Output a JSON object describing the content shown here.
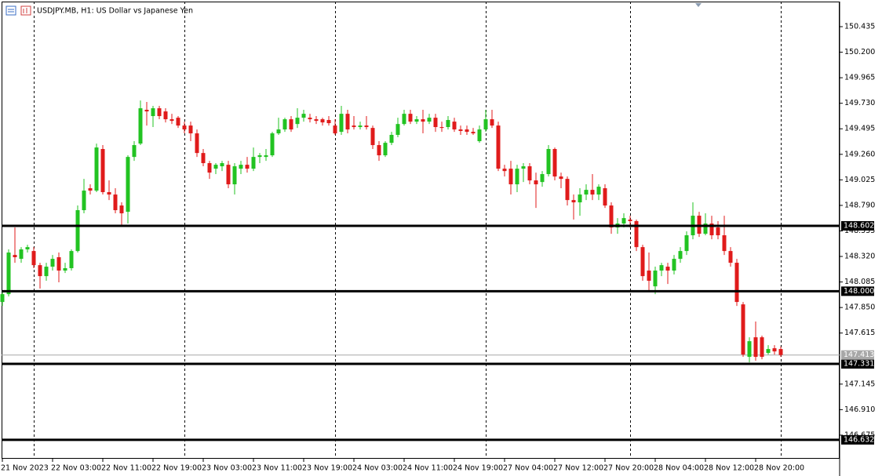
{
  "chart_data": {
    "type": "candlestick",
    "title": "USDJPY.MB, H1:  US Dollar vs Japanese Yen",
    "bull_color": "#22c322",
    "bear_color": "#e01b1b",
    "xlim": [
      -0.125,
      133.375
    ],
    "ylim": [
      146.458,
      150.666
    ],
    "yticks": [
      150.435,
      {
        "value": 150.2,
        "label": "150.200"
      },
      149.965,
      {
        "value": 149.73,
        "label": "149.730"
      },
      149.495,
      {
        "value": 149.26,
        "label": "149.260"
      },
      149.025,
      {
        "value": 148.79,
        "label": "148.790"
      },
      148.555,
      {
        "value": 148.32,
        "label": "148.320"
      },
      148.085,
      {
        "value": 147.85,
        "label": "147.850"
      },
      147.615,
      147.145,
      {
        "value": 146.91,
        "label": "146.910"
      },
      146.675
    ],
    "xticks": [
      {
        "value": 0,
        "label": "21 Nov 2023"
      },
      {
        "value": 8,
        "label": "22 Nov 03:00"
      },
      {
        "value": 16,
        "label": "22 Nov 11:00"
      },
      {
        "value": 24,
        "label": "22 Nov 19:00"
      },
      {
        "value": 32,
        "label": "23 Nov 03:00"
      },
      {
        "value": 40,
        "label": "23 Nov 11:00"
      },
      {
        "value": 48,
        "label": "23 Nov 19:00"
      },
      {
        "value": 56,
        "label": "24 Nov 03:00"
      },
      {
        "value": 64,
        "label": "24 Nov 11:00"
      },
      {
        "value": 72,
        "label": "24 Nov 19:00"
      },
      {
        "value": 80,
        "label": "27 Nov 04:00"
      },
      {
        "value": 88,
        "label": "27 Nov 12:00"
      },
      {
        "value": 96,
        "label": "27 Nov 20:00"
      },
      {
        "value": 104,
        "label": "28 Nov 04:00"
      },
      {
        "value": 112,
        "label": "28 Nov 12:00"
      },
      {
        "value": 120,
        "label": "28 Nov 20:00"
      }
    ],
    "period_separators": [
      5,
      29,
      53,
      77,
      100,
      124
    ],
    "levels": [
      148.602,
      {
        "value": 148,
        "label": "148.000"
      },
      147.331,
      146.632
    ],
    "current_price": 147.413,
    "open": [
      147.901,
      147.973,
      148.334,
      148.298,
      148.385,
      148.37,
      148.24,
      148.139,
      148.226,
      148.313,
      148.19,
      148.212,
      148.37,
      148.746,
      148.948,
      148.926,
      149.309,
      148.912,
      148.89,
      148.789,
      148.731,
      149.236,
      149.359,
      149.67,
      149.612,
      149.684,
      149.655,
      149.583,
      149.597,
      149.525,
      149.525,
      149.453,
      149.272,
      149.179,
      149.128,
      149.15,
      149.164,
      148.984,
      149.128,
      149.164,
      149.128,
      149.236,
      149.236,
      149.251,
      149.453,
      149.489,
      149.583,
      149.539,
      149.597,
      149.597,
      149.583,
      149.583,
      149.576,
      149.525,
      149.467,
      149.633,
      149.525,
      149.511,
      149.525,
      149.503,
      149.345,
      149.251,
      149.366,
      149.439,
      149.539,
      149.633,
      149.561,
      149.583,
      149.561,
      149.597,
      149.511,
      149.511,
      149.561,
      149.489,
      149.489,
      149.467,
      149.381,
      149.489,
      149.583,
      149.525,
      149.128,
      149.128,
      148.984,
      149.128,
      149.15,
      149.02,
      149.005,
      149.078,
      149.309,
      149.056,
      149.034,
      148.839,
      148.818,
      148.89,
      148.933,
      148.89,
      148.948,
      148.789,
      148.587,
      148.623,
      148.659,
      148.645,
      148.406,
      148.19,
      148.045,
      148.19,
      148.226,
      148.19,
      148.298,
      148.37,
      148.515,
      148.695,
      148.529,
      148.623,
      148.587,
      148.515,
      148.37,
      148.262,
      147.879,
      147.396,
      147.576,
      147.576,
      147.432,
      147.475,
      147.468
    ],
    "high": [
      147.995,
      148.385,
      148.587,
      148.406,
      148.428,
      148.406,
      148.262,
      148.262,
      148.334,
      148.356,
      148.262,
      148.385,
      148.789,
      149.034,
      148.984,
      149.359,
      149.345,
      149.02,
      148.948,
      148.818,
      149.251,
      149.381,
      149.756,
      149.742,
      149.706,
      149.706,
      149.684,
      149.633,
      149.612,
      149.561,
      149.561,
      149.489,
      149.309,
      149.2,
      149.179,
      149.2,
      149.2,
      149.179,
      149.2,
      149.236,
      149.323,
      149.272,
      149.309,
      149.467,
      149.597,
      149.597,
      149.612,
      149.684,
      149.67,
      149.633,
      149.612,
      149.597,
      149.612,
      149.583,
      149.706,
      149.67,
      149.612,
      149.561,
      149.612,
      149.525,
      149.381,
      149.381,
      149.467,
      149.597,
      149.67,
      149.67,
      149.612,
      149.67,
      149.633,
      149.633,
      149.561,
      149.612,
      149.597,
      149.525,
      149.525,
      149.503,
      149.525,
      149.67,
      149.67,
      149.561,
      149.164,
      149.2,
      149.164,
      149.179,
      149.179,
      149.092,
      149.106,
      149.345,
      149.323,
      149.092,
      149.056,
      148.89,
      148.948,
      148.984,
      149.078,
      148.984,
      148.984,
      148.818,
      148.673,
      148.717,
      148.695,
      148.659,
      148.428,
      148.356,
      148.226,
      148.262,
      148.262,
      148.334,
      148.406,
      148.551,
      148.818,
      148.731,
      148.717,
      148.695,
      148.645,
      148.695,
      148.406,
      148.298,
      147.901,
      147.576,
      147.721,
      147.591,
      147.504,
      147.504,
      147.49
    ],
    "low": [
      147.865,
      147.952,
      148.262,
      148.262,
      148.356,
      148.212,
      148.024,
      148.096,
      148.19,
      148.082,
      148.168,
      148.19,
      148.356,
      148.717,
      148.89,
      148.912,
      148.89,
      148.839,
      148.717,
      148.601,
      148.623,
      149.2,
      149.345,
      149.525,
      149.511,
      149.583,
      149.554,
      149.539,
      149.503,
      149.453,
      149.381,
      149.236,
      149.15,
      149.034,
      149.078,
      149.106,
      148.948,
      148.89,
      149.078,
      149.092,
      149.106,
      149.179,
      149.2,
      149.236,
      149.439,
      149.467,
      149.467,
      149.503,
      149.561,
      149.554,
      149.539,
      149.525,
      149.525,
      149.439,
      149.439,
      149.453,
      149.489,
      149.489,
      149.489,
      149.309,
      149.2,
      149.236,
      149.345,
      149.417,
      149.525,
      149.539,
      149.539,
      149.453,
      149.539,
      149.467,
      149.467,
      149.489,
      149.467,
      149.439,
      149.439,
      149.439,
      149.366,
      149.467,
      149.503,
      149.106,
      149.056,
      148.89,
      148.912,
      149.005,
      148.984,
      148.767,
      148.962,
      149.056,
      149.02,
      148.948,
      148.789,
      148.659,
      148.695,
      148.839,
      148.839,
      148.839,
      148.767,
      148.529,
      148.529,
      148.587,
      148.587,
      148.37,
      148.096,
      147.995,
      147.973,
      148.139,
      148.067,
      148.154,
      148.262,
      148.334,
      148.478,
      148.5,
      148.515,
      148.478,
      148.478,
      148.334,
      148.226,
      147.865,
      147.396,
      147.345,
      147.36,
      147.374,
      147.417,
      147.417,
      147.396
    ],
    "close": [
      147.973,
      148.356,
      148.313,
      148.385,
      148.406,
      148.24,
      148.139,
      148.226,
      148.298,
      148.19,
      148.212,
      148.37,
      148.746,
      148.926,
      148.926,
      149.323,
      148.912,
      148.89,
      148.746,
      148.717,
      149.236,
      149.345,
      149.684,
      149.655,
      149.684,
      149.612,
      149.583,
      149.568,
      149.525,
      149.489,
      149.453,
      149.272,
      149.179,
      149.092,
      149.164,
      149.179,
      148.984,
      149.15,
      149.164,
      149.128,
      149.236,
      149.251,
      149.251,
      149.453,
      149.489,
      149.583,
      149.489,
      149.597,
      149.633,
      149.583,
      149.568,
      149.554,
      149.547,
      149.453,
      149.633,
      149.489,
      149.511,
      149.525,
      149.511,
      149.345,
      149.251,
      149.366,
      149.439,
      149.539,
      149.633,
      149.561,
      149.583,
      149.561,
      149.597,
      149.511,
      149.503,
      149.576,
      149.489,
      149.475,
      149.467,
      149.453,
      149.489,
      149.583,
      149.525,
      149.128,
      149.106,
      148.984,
      149.128,
      149.15,
      149.02,
      148.984,
      149.078,
      149.309,
      149.056,
      149.034,
      148.839,
      148.818,
      148.89,
      148.933,
      148.89,
      148.962,
      148.789,
      148.587,
      148.623,
      148.673,
      148.645,
      148.406,
      148.139,
      148.096,
      148.19,
      148.24,
      148.19,
      148.298,
      148.37,
      148.515,
      148.695,
      148.529,
      148.623,
      148.515,
      148.515,
      148.37,
      148.262,
      147.901,
      147.417,
      147.54,
      147.396,
      147.396,
      147.468,
      147.446,
      147.413
    ]
  }
}
